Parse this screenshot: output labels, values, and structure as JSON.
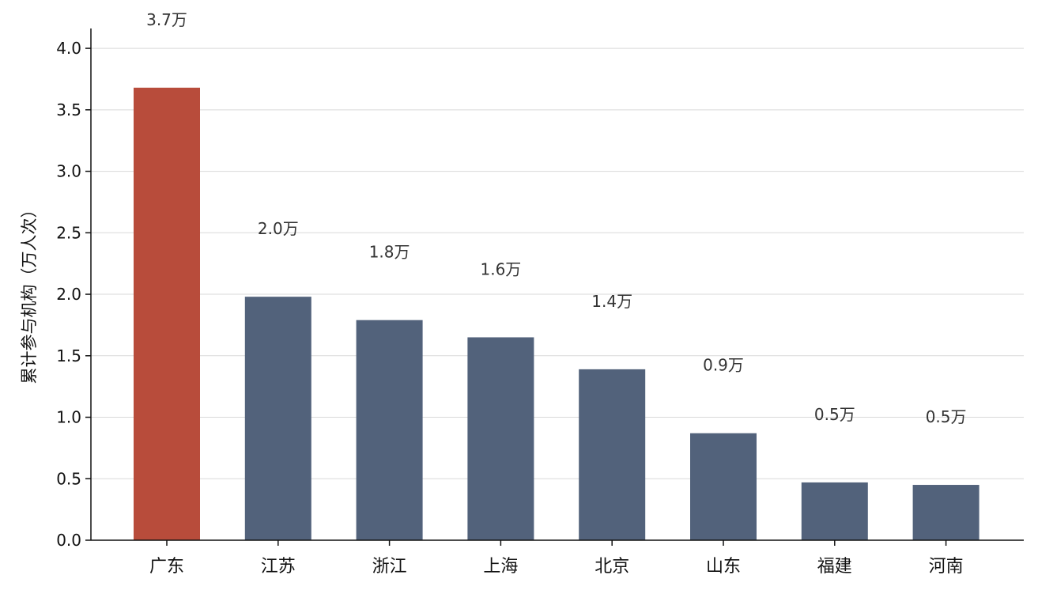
{
  "chart_data": {
    "type": "bar",
    "categories": [
      "广东",
      "江苏",
      "浙江",
      "上海",
      "北京",
      "山东",
      "福建",
      "河南"
    ],
    "values": [
      3.68,
      1.98,
      1.79,
      1.65,
      1.39,
      0.87,
      0.47,
      0.45
    ],
    "data_labels": [
      "3.7万",
      "2.0万",
      "1.8万",
      "1.6万",
      "1.4万",
      "0.9万",
      "0.5万",
      "0.5万"
    ],
    "title": "",
    "xlabel": "",
    "ylabel": "累计参与机构（万人次）",
    "ylim": [
      0,
      4.2
    ],
    "yticks": [
      "0.0",
      "0.5",
      "1.0",
      "1.5",
      "2.0",
      "2.5",
      "3.0",
      "3.5",
      "4.0"
    ],
    "grid": "horizontal",
    "colors": {
      "highlight": "#b84c3b",
      "default": "#52627b"
    }
  }
}
